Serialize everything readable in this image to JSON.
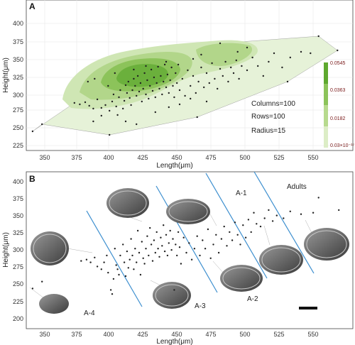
{
  "chart_data": [
    {
      "panel": "A",
      "type": "scatter",
      "xlabel": "Length(μm)",
      "ylabel": "Height(μm)",
      "xlim": [
        335,
        575
      ],
      "ylim": [
        195,
        410
      ],
      "xticks": [
        "350",
        "375",
        "400",
        "425",
        "450",
        "475",
        "500",
        "525",
        "550"
      ],
      "yticks": [
        "200",
        "225",
        "250",
        "275",
        "300",
        "325",
        "350",
        "375",
        "400"
      ],
      "annotations": [
        "Columns=100",
        "Rows=100",
        "Radius=15"
      ],
      "legend": {
        "placement": "right",
        "labels": [
          "0.0545",
          "0.0363",
          "0.0182",
          "0.03×10⁻¹⁷"
        ],
        "colors": [
          "#5ea82f",
          "#8cc35a",
          "#b7da8e",
          "#dcedc6"
        ]
      },
      "hull": [
        [
          341,
          248
        ],
        [
          348,
          258
        ],
        [
          398,
          243
        ],
        [
          463,
          268
        ],
        [
          530,
          318
        ],
        [
          567,
          362
        ],
        [
          553,
          382
        ],
        [
          480,
          372
        ],
        [
          425,
          340
        ],
        [
          402,
          330
        ],
        [
          382,
          318
        ],
        [
          372,
          288
        ]
      ],
      "points": [
        [
          341,
          248
        ],
        [
          348,
          258
        ],
        [
          398,
          243
        ],
        [
          463,
          268
        ],
        [
          530,
          318
        ],
        [
          567,
          362
        ],
        [
          553,
          382
        ],
        [
          480,
          372
        ],
        [
          425,
          340
        ],
        [
          402,
          330
        ],
        [
          382,
          318
        ],
        [
          372,
          288
        ],
        [
          376,
          286
        ],
        [
          380,
          289
        ],
        [
          383,
          284
        ],
        [
          386,
          280
        ],
        [
          389,
          293
        ],
        [
          392,
          281
        ],
        [
          395,
          285
        ],
        [
          398,
          277
        ],
        [
          400,
          290
        ],
        [
          401,
          300
        ],
        [
          403,
          283
        ],
        [
          404,
          271
        ],
        [
          405,
          296
        ],
        [
          406,
          306
        ],
        [
          408,
          280
        ],
        [
          409,
          291
        ],
        [
          410,
          313
        ],
        [
          411,
          302
        ],
        [
          412,
          318
        ],
        [
          413,
          295
        ],
        [
          414,
          285
        ],
        [
          415,
          306
        ],
        [
          416,
          322
        ],
        [
          417,
          312
        ],
        [
          418,
          298
        ],
        [
          419,
          326
        ],
        [
          420,
          304
        ],
        [
          421,
          316
        ],
        [
          422,
          290
        ],
        [
          423,
          308
        ],
        [
          424,
          330
        ],
        [
          425,
          300
        ],
        [
          426,
          320
        ],
        [
          427,
          294
        ],
        [
          428,
          312
        ],
        [
          429,
          335
        ],
        [
          430,
          305
        ],
        [
          431,
          324
        ],
        [
          432,
          296
        ],
        [
          433,
          316
        ],
        [
          434,
          339
        ],
        [
          435,
          308
        ],
        [
          436,
          326
        ],
        [
          437,
          300
        ],
        [
          438,
          318
        ],
        [
          439,
          342
        ],
        [
          440,
          310
        ],
        [
          441,
          328
        ],
        [
          442,
          302
        ],
        [
          443,
          320
        ],
        [
          444,
          338
        ],
        [
          445,
          312
        ],
        [
          446,
          296
        ],
        [
          447,
          330
        ],
        [
          448,
          316
        ],
        [
          449,
          342
        ],
        [
          450,
          306
        ],
        [
          452,
          322
        ],
        [
          454,
          298
        ],
        [
          456,
          334
        ],
        [
          458,
          312
        ],
        [
          460,
          326
        ],
        [
          462,
          302
        ],
        [
          464,
          318
        ],
        [
          466,
          338
        ],
        [
          468,
          310
        ],
        [
          470,
          330
        ],
        [
          472,
          316
        ],
        [
          474,
          344
        ],
        [
          476,
          322
        ],
        [
          478,
          308
        ],
        [
          480,
          336
        ],
        [
          482,
          326
        ],
        [
          484,
          346
        ],
        [
          486,
          318
        ],
        [
          488,
          338
        ],
        [
          490,
          330
        ],
        [
          492,
          348
        ],
        [
          494,
          322
        ],
        [
          496,
          340
        ],
        [
          500,
          334
        ],
        [
          504,
          352
        ],
        [
          508,
          340
        ],
        [
          512,
          326
        ],
        [
          516,
          346
        ],
        [
          520,
          358
        ],
        [
          526,
          338
        ],
        [
          532,
          352
        ],
        [
          540,
          360
        ],
        [
          547,
          358
        ],
        [
          386,
          262
        ],
        [
          392,
          270
        ],
        [
          410,
          262
        ],
        [
          418,
          258
        ],
        [
          432,
          275
        ],
        [
          442,
          282
        ],
        [
          450,
          286
        ],
        [
          458,
          294
        ],
        [
          470,
          290
        ],
        [
          397,
          312
        ],
        [
          387,
          322
        ],
        [
          416,
          335
        ],
        [
          440,
          346
        ],
        [
          460,
          350
        ],
        [
          466,
          356
        ],
        [
          493,
          360
        ],
        [
          500,
          366
        ]
      ]
    },
    {
      "panel": "B",
      "type": "scatter",
      "xlabel": "Length(μm)",
      "ylabel": "Height(μm)",
      "xlim": [
        335,
        575
      ],
      "ylim": [
        195,
        410
      ],
      "xticks": [
        "350",
        "375",
        "400",
        "425",
        "450",
        "475",
        "500",
        "525",
        "550"
      ],
      "yticks": [
        "200",
        "225",
        "250",
        "275",
        "300",
        "325",
        "350",
        "375",
        "400"
      ],
      "stage_labels": [
        "A-4",
        "A-3",
        "A-2",
        "A-1",
        "Adults"
      ],
      "points": [
        [
          341,
          248
        ],
        [
          348,
          258
        ],
        [
          377,
          288
        ],
        [
          381,
          290
        ],
        [
          384,
          286
        ],
        [
          387,
          293
        ],
        [
          389,
          280
        ],
        [
          392,
          276
        ],
        [
          394,
          286
        ],
        [
          396,
          296
        ],
        [
          397,
          271
        ],
        [
          399,
          246
        ],
        [
          400,
          240
        ],
        [
          401,
          262
        ],
        [
          402,
          306
        ],
        [
          403,
          282
        ],
        [
          404,
          276
        ],
        [
          405,
          268
        ],
        [
          406,
          296
        ],
        [
          408,
          312
        ],
        [
          409,
          286
        ],
        [
          410,
          266
        ],
        [
          411,
          302
        ],
        [
          412,
          278
        ],
        [
          413,
          290
        ],
        [
          414,
          320
        ],
        [
          415,
          296
        ],
        [
          416,
          276
        ],
        [
          417,
          306
        ],
        [
          418,
          286
        ],
        [
          419,
          332
        ],
        [
          420,
          300
        ],
        [
          421,
          268
        ],
        [
          422,
          316
        ],
        [
          423,
          292
        ],
        [
          424,
          284
        ],
        [
          425,
          306
        ],
        [
          426,
          324
        ],
        [
          427,
          296
        ],
        [
          428,
          336
        ],
        [
          429,
          312
        ],
        [
          430,
          288
        ],
        [
          431,
          318
        ],
        [
          432,
          300
        ],
        [
          433,
          330
        ],
        [
          434,
          306
        ],
        [
          435,
          294
        ],
        [
          436,
          322
        ],
        [
          437,
          310
        ],
        [
          438,
          340
        ],
        [
          439,
          302
        ],
        [
          440,
          326
        ],
        [
          441,
          296
        ],
        [
          442,
          314
        ],
        [
          443,
          332
        ],
        [
          444,
          304
        ],
        [
          445,
          320
        ],
        [
          446,
          246
        ],
        [
          447,
          312
        ],
        [
          448,
          296
        ],
        [
          449,
          330
        ],
        [
          450,
          308
        ],
        [
          451,
          284
        ],
        [
          453,
          322
        ],
        [
          455,
          300
        ],
        [
          457,
          314
        ],
        [
          459,
          290
        ],
        [
          461,
          306
        ],
        [
          463,
          324
        ],
        [
          465,
          296
        ],
        [
          467,
          318
        ],
        [
          469,
          306
        ],
        [
          471,
          334
        ],
        [
          473,
          292
        ],
        [
          475,
          312
        ],
        [
          477,
          326
        ],
        [
          479,
          300
        ],
        [
          481,
          320
        ],
        [
          483,
          338
        ],
        [
          485,
          310
        ],
        [
          487,
          330
        ],
        [
          489,
          318
        ],
        [
          491,
          344
        ],
        [
          493,
          326
        ],
        [
          495,
          312
        ],
        [
          497,
          340
        ],
        [
          499,
          322
        ],
        [
          501,
          348
        ],
        [
          503,
          330
        ],
        [
          505,
          358
        ],
        [
          507,
          342
        ],
        [
          510,
          338
        ],
        [
          513,
          350
        ],
        [
          516,
          362
        ],
        [
          519,
          346
        ],
        [
          522,
          354
        ],
        [
          527,
          350
        ],
        [
          532,
          360
        ],
        [
          540,
          356
        ],
        [
          549,
          358
        ],
        [
          553,
          380
        ],
        [
          568,
          362
        ]
      ]
    }
  ]
}
